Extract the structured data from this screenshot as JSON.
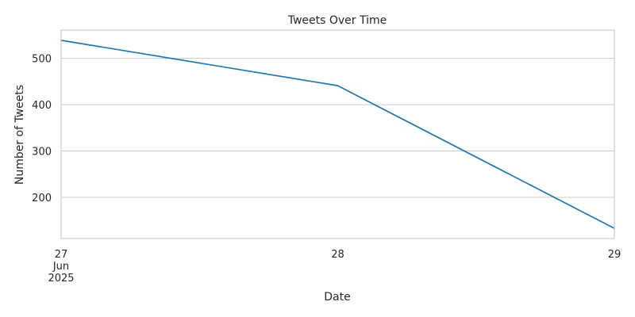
{
  "chart_data": {
    "type": "line",
    "title": "Tweets Over Time",
    "xlabel": "Date",
    "ylabel": "Number of Tweets",
    "x": [
      "2025-06-27",
      "2025-06-28",
      "2025-06-29"
    ],
    "x_ticks": [
      {
        "x": "2025-06-27",
        "lines": [
          "27",
          "Jun",
          "2025"
        ]
      },
      {
        "x": "2025-06-28",
        "lines": [
          "28"
        ]
      },
      {
        "x": "2025-06-29",
        "lines": [
          "29"
        ]
      }
    ],
    "series": [
      {
        "values": [
          539,
          441,
          133
        ],
        "color": "#1f77b4"
      }
    ],
    "y_ticks": [
      200,
      300,
      400,
      500
    ],
    "ylim": [
      111,
      561
    ],
    "grid": "horizontal",
    "style": {
      "background": "#ffffff",
      "grid_color": "#cccccc",
      "frame_color": "#cccccc",
      "text_color": "#262626"
    }
  }
}
